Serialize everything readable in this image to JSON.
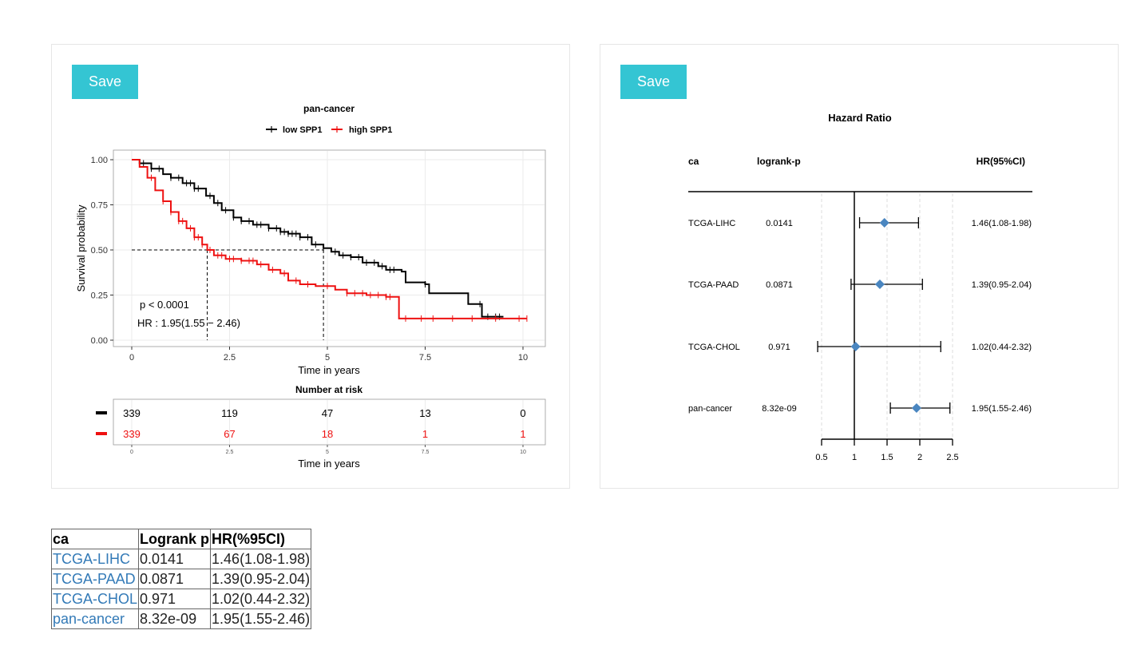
{
  "buttons": {
    "save_label": "Save"
  },
  "km_plot": {
    "title": "pan-cancer",
    "legend": [
      {
        "label": "low SPP1",
        "color": "#000000"
      },
      {
        "label": "high SPP1",
        "color": "#ee1111"
      }
    ],
    "ylabel": "Survival probability",
    "xlabel": "Time in years",
    "pvalue": "p < 0.0001",
    "hr": "HR : 1.95(1.55 − 2.46)",
    "risk_title": "Number at risk",
    "risk_xlabel": "Time in years"
  },
  "forest_plot": {
    "title": "Hazard Ratio",
    "col_headers": {
      "ca": "ca",
      "p": "logrank-p",
      "hr": "HR(95%CI)"
    }
  },
  "chart_data": [
    {
      "type": "line",
      "title": "pan-cancer",
      "xlabel": "Time in years",
      "ylabel": "Survival probability",
      "xlim": [
        0,
        10
      ],
      "ylim": [
        0,
        1
      ],
      "xticks": [
        0,
        2.5,
        5,
        7.5,
        10
      ],
      "yticks": [
        0,
        0.25,
        0.5,
        0.75,
        1.0
      ],
      "xtick_labels": [
        "0",
        "2.5",
        "5",
        "7.5",
        "10"
      ],
      "ytick_labels": [
        "0.00",
        "0.25",
        "0.50",
        "0.75",
        "1.00"
      ],
      "grid": true,
      "legend_position": "top",
      "median_line_y": 0.5,
      "median_x": [
        1.93,
        4.9
      ],
      "series": [
        {
          "name": "low SPP1",
          "color": "#000000",
          "points": [
            [
              0,
              1.0
            ],
            [
              0.2,
              0.98
            ],
            [
              0.5,
              0.95
            ],
            [
              0.8,
              0.92
            ],
            [
              1.0,
              0.9
            ],
            [
              1.3,
              0.87
            ],
            [
              1.6,
              0.84
            ],
            [
              1.9,
              0.8
            ],
            [
              2.1,
              0.76
            ],
            [
              2.3,
              0.72
            ],
            [
              2.6,
              0.68
            ],
            [
              2.8,
              0.66
            ],
            [
              3.1,
              0.64
            ],
            [
              3.5,
              0.62
            ],
            [
              3.8,
              0.6
            ],
            [
              4.0,
              0.59
            ],
            [
              4.3,
              0.57
            ],
            [
              4.6,
              0.53
            ],
            [
              4.9,
              0.51
            ],
            [
              5.1,
              0.49
            ],
            [
              5.3,
              0.47
            ],
            [
              5.6,
              0.46
            ],
            [
              5.9,
              0.43
            ],
            [
              6.3,
              0.41
            ],
            [
              6.5,
              0.39
            ],
            [
              6.9,
              0.38
            ],
            [
              7.0,
              0.32
            ],
            [
              7.5,
              0.31
            ],
            [
              7.6,
              0.26
            ],
            [
              8.4,
              0.26
            ],
            [
              8.6,
              0.2
            ],
            [
              8.9,
              0.2
            ],
            [
              8.95,
              0.13
            ],
            [
              9.5,
              0.13
            ]
          ],
          "censor_x": [
            0.3,
            0.5,
            0.7,
            1.0,
            1.2,
            1.4,
            1.5,
            1.6,
            1.7,
            2.0,
            2.2,
            2.4,
            2.6,
            2.8,
            3.0,
            3.2,
            3.3,
            3.5,
            3.7,
            3.8,
            3.9,
            4.0,
            4.1,
            4.2,
            4.3,
            4.5,
            4.7,
            4.9,
            5.2,
            5.4,
            5.6,
            5.8,
            6.0,
            6.2,
            6.4,
            6.6,
            6.7,
            7.5,
            8.9,
            9.1,
            9.3,
            9.4
          ]
        },
        {
          "name": "high SPP1",
          "color": "#ee1111",
          "points": [
            [
              0,
              1.0
            ],
            [
              0.2,
              0.96
            ],
            [
              0.4,
              0.9
            ],
            [
              0.6,
              0.83
            ],
            [
              0.8,
              0.77
            ],
            [
              1.0,
              0.71
            ],
            [
              1.2,
              0.66
            ],
            [
              1.4,
              0.62
            ],
            [
              1.6,
              0.57
            ],
            [
              1.8,
              0.53
            ],
            [
              1.93,
              0.5
            ],
            [
              2.1,
              0.47
            ],
            [
              2.4,
              0.45
            ],
            [
              2.8,
              0.44
            ],
            [
              3.2,
              0.42
            ],
            [
              3.5,
              0.39
            ],
            [
              3.8,
              0.37
            ],
            [
              4.0,
              0.33
            ],
            [
              4.3,
              0.31
            ],
            [
              4.7,
              0.3
            ],
            [
              5.2,
              0.28
            ],
            [
              5.5,
              0.26
            ],
            [
              6.0,
              0.25
            ],
            [
              6.5,
              0.24
            ],
            [
              6.8,
              0.24
            ],
            [
              6.83,
              0.12
            ],
            [
              10.1,
              0.12
            ]
          ],
          "censor_x": [
            0.5,
            0.8,
            1.0,
            1.2,
            1.3,
            1.5,
            1.6,
            1.7,
            1.8,
            2.0,
            2.2,
            2.3,
            2.5,
            2.6,
            2.8,
            3.0,
            3.1,
            3.3,
            3.6,
            3.9,
            4.2,
            4.5,
            5.0,
            5.5,
            5.7,
            5.9,
            6.1,
            6.3,
            6.5,
            6.6,
            7.0,
            7.4,
            7.7,
            8.2,
            8.7,
            9.3,
            9.9,
            10.1
          ]
        }
      ],
      "annotations": [
        "p < 0.0001",
        "HR : 1.95(1.55 − 2.46)"
      ]
    },
    {
      "type": "table",
      "title": "Number at risk",
      "xlabel": "Time in years",
      "x": [
        0,
        2.5,
        5,
        7.5,
        10
      ],
      "x_labels": [
        "0",
        "2.5",
        "5",
        "7.5",
        "10"
      ],
      "series": [
        {
          "name": "low SPP1",
          "color": "#000000",
          "values": [
            339,
            119,
            47,
            13,
            0
          ]
        },
        {
          "name": "high SPP1",
          "color": "#ee1111",
          "values": [
            339,
            67,
            18,
            1,
            1
          ]
        }
      ]
    },
    {
      "type": "scatter",
      "title": "Hazard Ratio",
      "xlim": [
        0.5,
        2.5
      ],
      "xticks": [
        0.5,
        1,
        1.5,
        2,
        2.5
      ],
      "xtick_labels": [
        "0.5",
        "1",
        "1.5",
        "2",
        "2.5"
      ],
      "reference_line": 1,
      "rows": [
        {
          "ca": "TCGA-LIHC",
          "p": "0.0141",
          "hr": 1.46,
          "lower": 1.08,
          "upper": 1.98,
          "label": "1.46(1.08-1.98)"
        },
        {
          "ca": "TCGA-PAAD",
          "p": "0.0871",
          "hr": 1.39,
          "lower": 0.95,
          "upper": 2.04,
          "label": "1.39(0.95-2.04)"
        },
        {
          "ca": "TCGA-CHOL",
          "p": "0.971",
          "hr": 1.02,
          "lower": 0.44,
          "upper": 2.32,
          "label": "1.02(0.44-2.32)"
        },
        {
          "ca": "pan-cancer",
          "p": "8.32e-09",
          "hr": 1.95,
          "lower": 1.55,
          "upper": 2.46,
          "label": "1.95(1.55-2.46)"
        }
      ],
      "marker_color": "#4a86c0"
    }
  ],
  "table": {
    "headers": [
      "ca",
      "Logrank p",
      "HR(%95CI)"
    ],
    "rows": [
      [
        "TCGA-LIHC",
        "0.0141",
        "1.46(1.08-1.98)"
      ],
      [
        "TCGA-PAAD",
        "0.0871",
        "1.39(0.95-2.04)"
      ],
      [
        "TCGA-CHOL",
        "0.971",
        "1.02(0.44-2.32)"
      ],
      [
        "pan-cancer",
        "8.32e-09",
        "1.95(1.55-2.46)"
      ]
    ]
  }
}
